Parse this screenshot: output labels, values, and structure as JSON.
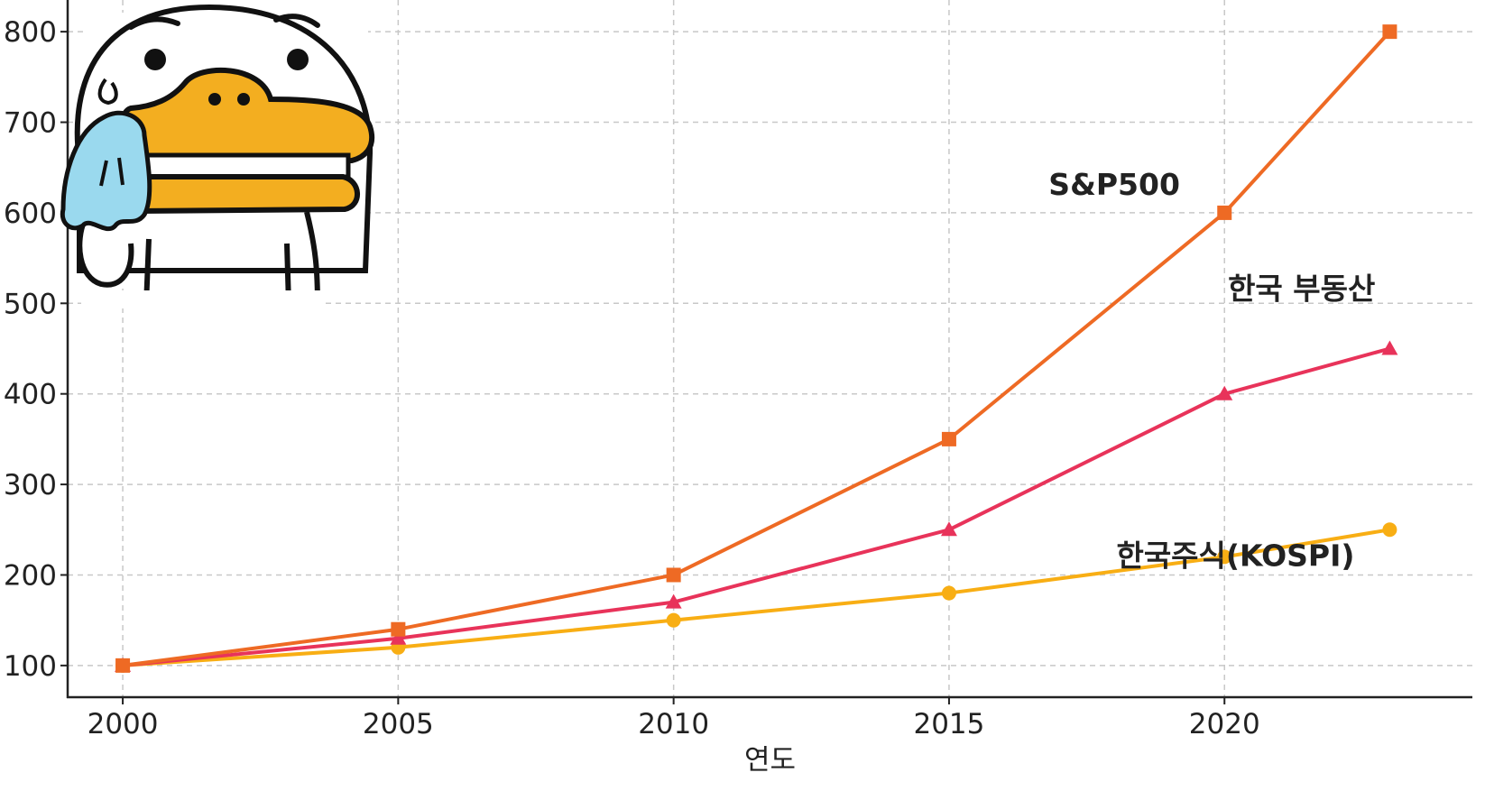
{
  "chart_data": {
    "type": "line",
    "title": "",
    "xlabel": "연도",
    "ylabel": "",
    "xlim": [
      1999,
      2024.5
    ],
    "ylim": [
      65,
      835
    ],
    "xticks": [
      2000,
      2005,
      2010,
      2015,
      2020
    ],
    "yticks": [
      100,
      200,
      300,
      400,
      500,
      600,
      700,
      800
    ],
    "grid": true,
    "legend": "none",
    "x": [
      2000,
      2005,
      2010,
      2015,
      2020,
      2023
    ],
    "series": [
      {
        "name": "S&P500",
        "values": [
          100,
          140,
          200,
          350,
          600,
          800
        ],
        "color": "#EE6A24",
        "marker": "square",
        "label_at": [
          2018,
          620
        ]
      },
      {
        "name": "한국 부동산",
        "values": [
          100,
          130,
          170,
          250,
          400,
          450
        ],
        "color": "#E8335A",
        "marker": "triangle",
        "label_at": [
          2021.4,
          505
        ]
      },
      {
        "name": "한국주식(KOSPI)",
        "values": [
          100,
          120,
          150,
          180,
          220,
          250
        ],
        "color": "#F8AE14",
        "marker": "circle",
        "label_at": [
          2020.2,
          210
        ]
      }
    ]
  },
  "image": {
    "icon": "duck-wiping-sweat-icon"
  }
}
